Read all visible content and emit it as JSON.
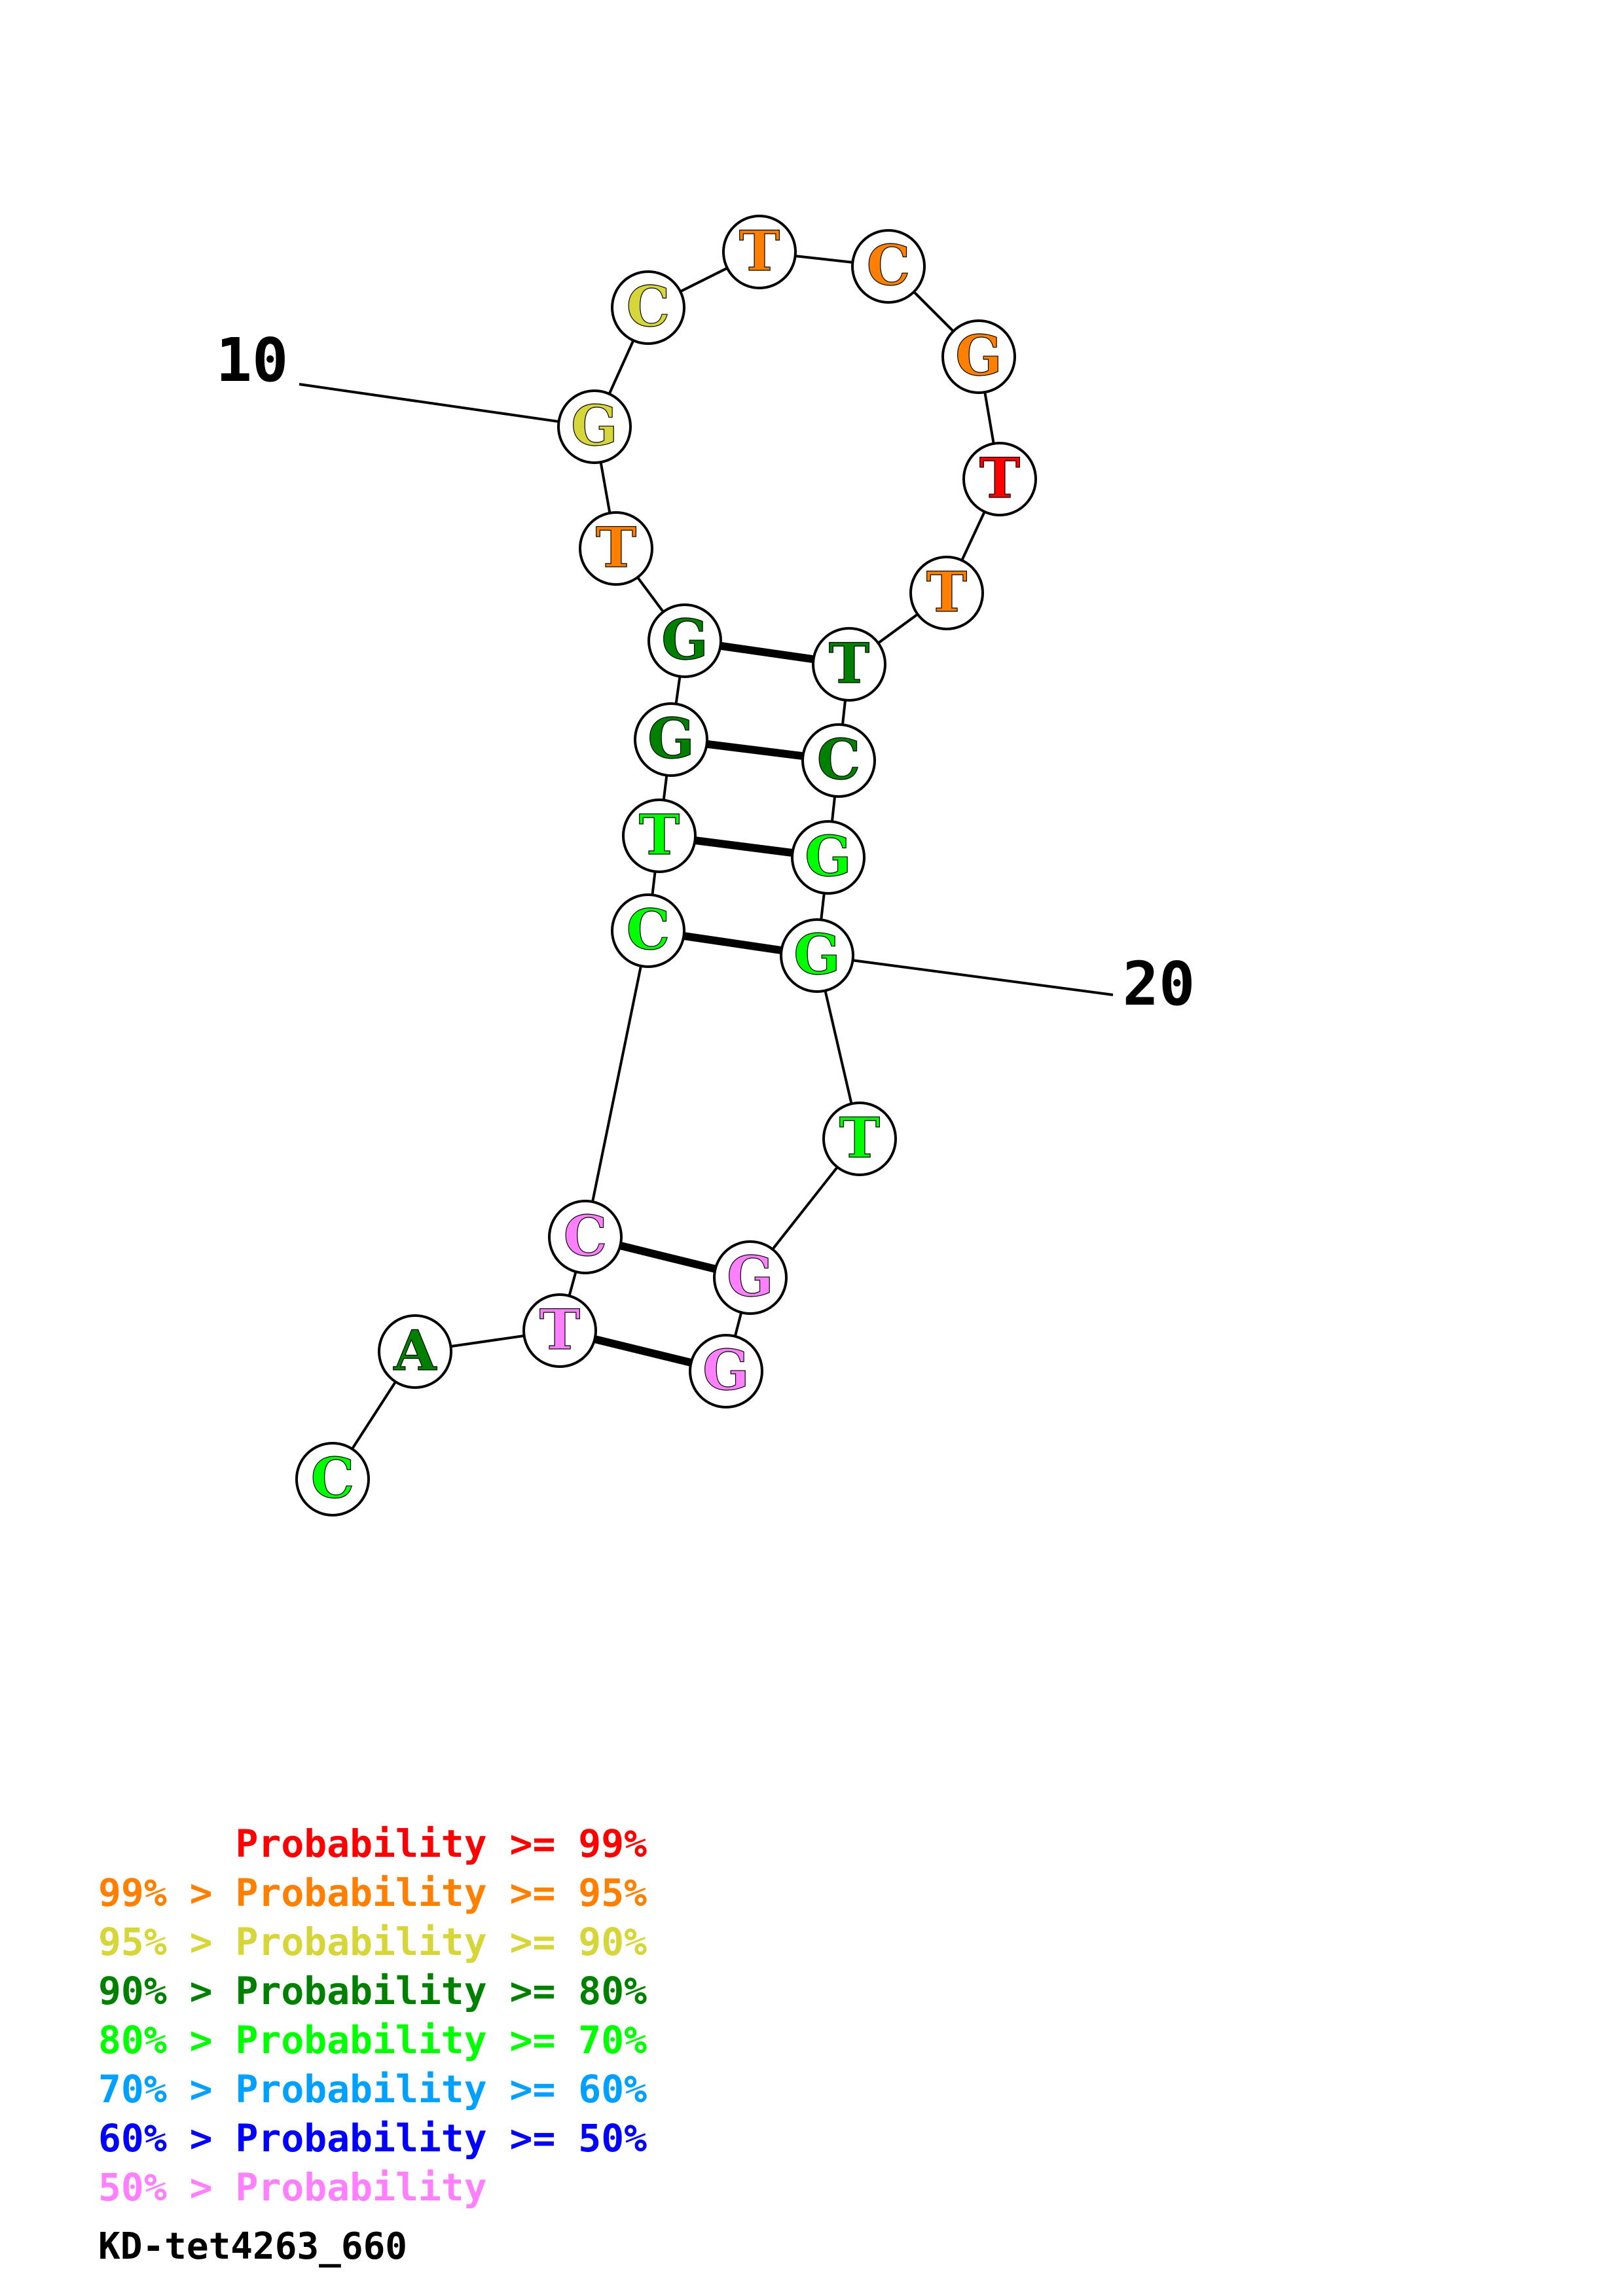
{
  "colors": {
    "p99": "#ff0000",
    "p95": "#ff8000",
    "p90": "#d6d63a",
    "p80": "#008000",
    "p70": "#00ff00",
    "p60": "#00a0ff",
    "p50": "#0000ff",
    "plow": "#ff80ff"
  },
  "nucleotides": [
    {
      "index": 1,
      "base": "C",
      "color": "p70"
    },
    {
      "index": 2,
      "base": "A",
      "color": "p80"
    },
    {
      "index": 3,
      "base": "T",
      "color": "plow"
    },
    {
      "index": 4,
      "base": "C",
      "color": "plow"
    },
    {
      "index": 5,
      "base": "C",
      "color": "p70"
    },
    {
      "index": 6,
      "base": "T",
      "color": "p70"
    },
    {
      "index": 7,
      "base": "G",
      "color": "p80"
    },
    {
      "index": 8,
      "base": "G",
      "color": "p80"
    },
    {
      "index": 9,
      "base": "T",
      "color": "p95"
    },
    {
      "index": 10,
      "base": "G",
      "color": "p90"
    },
    {
      "index": 11,
      "base": "C",
      "color": "p90"
    },
    {
      "index": 12,
      "base": "T",
      "color": "p95"
    },
    {
      "index": 13,
      "base": "C",
      "color": "p95"
    },
    {
      "index": 14,
      "base": "G",
      "color": "p95"
    },
    {
      "index": 15,
      "base": "T",
      "color": "p99"
    },
    {
      "index": 16,
      "base": "T",
      "color": "p95"
    },
    {
      "index": 17,
      "base": "T",
      "color": "p80"
    },
    {
      "index": 18,
      "base": "C",
      "color": "p80"
    },
    {
      "index": 19,
      "base": "G",
      "color": "p70"
    },
    {
      "index": 20,
      "base": "G",
      "color": "p70"
    },
    {
      "index": 21,
      "base": "T",
      "color": "p70"
    },
    {
      "index": 22,
      "base": "G",
      "color": "plow"
    },
    {
      "index": 23,
      "base": "G",
      "color": "plow"
    }
  ],
  "pairs": [
    [
      3,
      23
    ],
    [
      4,
      22
    ],
    [
      5,
      20
    ],
    [
      6,
      19
    ],
    [
      7,
      18
    ],
    [
      8,
      17
    ]
  ],
  "position_labels": [
    {
      "index": 10,
      "text": "10"
    },
    {
      "index": 20,
      "text": "20"
    }
  ],
  "legend": [
    {
      "prefix": "    ",
      "text": "Probability >= 99%",
      "color": "p99"
    },
    {
      "prefix": "99% > ",
      "text": "Probability >= 95%",
      "color": "p95"
    },
    {
      "prefix": "95% > ",
      "text": "Probability >= 90%",
      "color": "p90"
    },
    {
      "prefix": "90% > ",
      "text": "Probability >= 80%",
      "color": "p80"
    },
    {
      "prefix": "80% > ",
      "text": "Probability >= 70%",
      "color": "p70"
    },
    {
      "prefix": "70% > ",
      "text": "Probability >= 60%",
      "color": "p60"
    },
    {
      "prefix": "60% > ",
      "text": "Probability >= 50%",
      "color": "p50"
    },
    {
      "prefix": "50% > ",
      "text": "Probability",
      "color": "plow"
    }
  ],
  "title": "KD-tet4263_660"
}
